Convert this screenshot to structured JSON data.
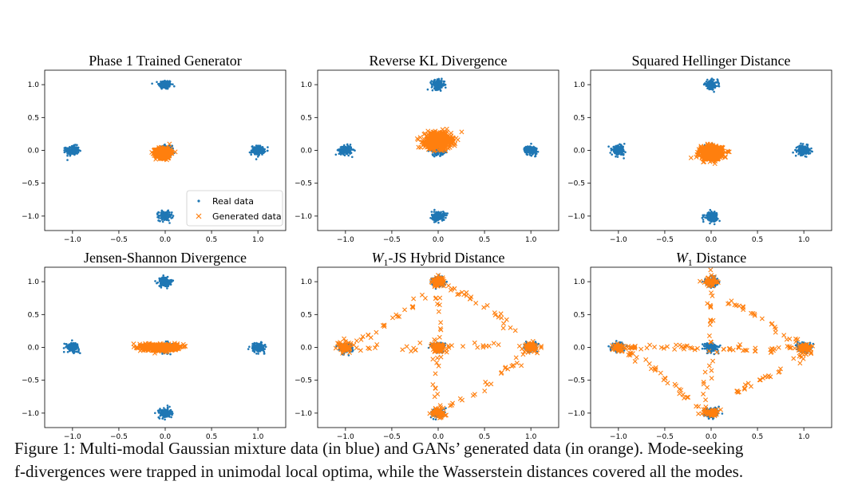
{
  "chart_data": [
    {
      "type": "scatter",
      "title": "Phase 1 Trained Generator",
      "xlim": [
        -1.3,
        1.3
      ],
      "ylim": [
        -1.22,
        1.22
      ],
      "xticks": [
        -1.0,
        -0.5,
        0.0,
        0.5,
        1.0
      ],
      "yticks": [
        -1.0,
        -0.5,
        0.0,
        0.5,
        1.0
      ],
      "legend": {
        "placement": "bottom-right",
        "entries": [
          "Real data",
          "Generated data"
        ]
      },
      "series": [
        {
          "name": "Real data",
          "marker": "dot",
          "color": "#1f77b4",
          "clusters": [
            [
              0,
              1
            ],
            [
              -1,
              0
            ],
            [
              0,
              0
            ],
            [
              1,
              0
            ],
            [
              0,
              -1
            ]
          ],
          "spread": 0.035,
          "points_per_cluster": 160
        },
        {
          "name": "Generated data",
          "marker": "x",
          "color": "#ff7f0e",
          "clusters": [
            [
              -0.02,
              -0.04
            ]
          ],
          "spread_xy": [
            0.04,
            0.04
          ],
          "points_per_cluster": 450
        }
      ]
    },
    {
      "type": "scatter",
      "title": "Reverse KL Divergence",
      "xlim": [
        -1.3,
        1.3
      ],
      "ylim": [
        -1.22,
        1.22
      ],
      "xticks": [
        -1.0,
        -0.5,
        0.0,
        0.5,
        1.0
      ],
      "yticks": [
        -1.0,
        -0.5,
        0.0,
        0.5,
        1.0
      ],
      "series": [
        {
          "name": "Real data",
          "marker": "dot",
          "color": "#1f77b4",
          "clusters": [
            [
              0,
              1
            ],
            [
              -1,
              0
            ],
            [
              0,
              0
            ],
            [
              1,
              0
            ],
            [
              0,
              -1
            ]
          ],
          "spread": 0.035,
          "points_per_cluster": 160
        },
        {
          "name": "Generated data",
          "marker": "x",
          "color": "#ff7f0e",
          "clusters": [
            [
              0.0,
              0.15
            ]
          ],
          "spread_xy": [
            0.07,
            0.06
          ],
          "points_per_cluster": 600
        }
      ]
    },
    {
      "type": "scatter",
      "title": "Squared Hellinger Distance",
      "xlim": [
        -1.3,
        1.3
      ],
      "ylim": [
        -1.22,
        1.22
      ],
      "xticks": [
        -1.0,
        -0.5,
        0.0,
        0.5,
        1.0
      ],
      "yticks": [
        -1.0,
        -0.5,
        0.0,
        0.5,
        1.0
      ],
      "series": [
        {
          "name": "Real data",
          "marker": "dot",
          "color": "#1f77b4",
          "clusters": [
            [
              0,
              1
            ],
            [
              -1,
              0
            ],
            [
              0,
              0
            ],
            [
              1,
              0
            ],
            [
              0,
              -1
            ]
          ],
          "spread": 0.035,
          "points_per_cluster": 160
        },
        {
          "name": "Generated data",
          "marker": "x",
          "color": "#ff7f0e",
          "clusters": [
            [
              0.0,
              -0.04
            ]
          ],
          "spread_xy": [
            0.06,
            0.05
          ],
          "points_per_cluster": 500
        }
      ]
    },
    {
      "type": "scatter",
      "title": "Jensen-Shannon Divergence",
      "xlim": [
        -1.3,
        1.3
      ],
      "ylim": [
        -1.22,
        1.22
      ],
      "xticks": [
        -1.0,
        -0.5,
        0.0,
        0.5,
        1.0
      ],
      "yticks": [
        -1.0,
        -0.5,
        0.0,
        0.5,
        1.0
      ],
      "series": [
        {
          "name": "Real data",
          "marker": "dot",
          "color": "#1f77b4",
          "clusters": [
            [
              0,
              1
            ],
            [
              -1,
              0
            ],
            [
              0,
              0
            ],
            [
              1,
              0
            ],
            [
              0,
              -1
            ]
          ],
          "spread": 0.035,
          "points_per_cluster": 160
        },
        {
          "name": "Generated data",
          "marker": "x",
          "color": "#ff7f0e",
          "clusters": [
            [
              -0.05,
              0.0
            ]
          ],
          "spread_xy": [
            0.09,
            0.025
          ],
          "points_per_cluster": 500
        }
      ]
    },
    {
      "type": "scatter",
      "title": "W1-JS Hybrid Distance",
      "title_parts": [
        "W",
        "1",
        "-JS Hybrid Distance"
      ],
      "xlim": [
        -1.3,
        1.3
      ],
      "ylim": [
        -1.22,
        1.22
      ],
      "xticks": [
        -1.0,
        -0.5,
        0.0,
        0.5,
        1.0
      ],
      "yticks": [
        -1.0,
        -0.5,
        0.0,
        0.5,
        1.0
      ],
      "series": [
        {
          "name": "Real data",
          "marker": "dot",
          "color": "#1f77b4",
          "clusters": [
            [
              0,
              1
            ],
            [
              -1,
              0
            ],
            [
              0,
              0
            ],
            [
              1,
              0
            ],
            [
              0,
              -1
            ]
          ],
          "spread": 0.035,
          "points_per_cluster": 160
        },
        {
          "name": "Generated data",
          "marker": "x",
          "color": "#ff7f0e",
          "clusters": [
            [
              0,
              1
            ],
            [
              -1,
              0
            ],
            [
              1,
              0
            ],
            [
              0,
              -1
            ],
            [
              0,
              0
            ]
          ],
          "spread_xy": [
            0.035,
            0.035
          ],
          "points_per_cluster": 60,
          "paths": [
            [
              [
                -1,
                0
              ],
              [
                -0.6,
                0.3
              ],
              [
                -0.3,
                0.6
              ],
              [
                0,
                1
              ]
            ],
            [
              [
                0,
                1
              ],
              [
                0.3,
                0.8
              ],
              [
                0.6,
                0.55
              ],
              [
                1,
                0
              ]
            ],
            [
              [
                -1,
                0
              ],
              [
                -0.5,
                0.0
              ],
              [
                0,
                0
              ],
              [
                0.5,
                0.03
              ],
              [
                1,
                0
              ]
            ],
            [
              [
                0,
                1
              ],
              [
                0,
                0.5
              ],
              [
                0,
                0
              ],
              [
                0,
                -0.5
              ],
              [
                0,
                -1
              ]
            ],
            [
              [
                1,
                0
              ],
              [
                0.75,
                -0.3
              ],
              [
                0.45,
                -0.65
              ],
              [
                0,
                -1
              ]
            ]
          ],
          "points_per_path": 28
        }
      ]
    },
    {
      "type": "scatter",
      "title": "W1 Distance",
      "title_parts": [
        "W",
        "1",
        " Distance"
      ],
      "xlim": [
        -1.3,
        1.3
      ],
      "ylim": [
        -1.22,
        1.22
      ],
      "xticks": [
        -1.0,
        -0.5,
        0.0,
        0.5,
        1.0
      ],
      "yticks": [
        -1.0,
        -0.5,
        0.0,
        0.5,
        1.0
      ],
      "series": [
        {
          "name": "Real data",
          "marker": "dot",
          "color": "#1f77b4",
          "clusters": [
            [
              0,
              1
            ],
            [
              -1,
              0
            ],
            [
              0,
              0
            ],
            [
              1,
              0
            ],
            [
              0,
              -1
            ]
          ],
          "spread": 0.035,
          "points_per_cluster": 160
        },
        {
          "name": "Generated data",
          "marker": "x",
          "color": "#ff7f0e",
          "clusters": [
            [
              -1,
              0
            ],
            [
              1,
              0
            ],
            [
              0,
              -1
            ],
            [
              0,
              1
            ]
          ],
          "spread_xy": [
            0.04,
            0.03
          ],
          "points_per_cluster": 40,
          "paths": [
            [
              [
                -1,
                0
              ],
              [
                -0.5,
                0.01
              ],
              [
                0,
                0
              ]
            ],
            [
              [
                0,
                1.2
              ],
              [
                0,
                0.6
              ],
              [
                0,
                0
              ],
              [
                -0.05,
                -0.6
              ],
              [
                -0.1,
                -1.1
              ]
            ],
            [
              [
                0,
                0.8
              ],
              [
                0.4,
                0.55
              ],
              [
                0.8,
                0.2
              ],
              [
                1.1,
                -0.05
              ]
            ],
            [
              [
                -0.9,
                -0.1
              ],
              [
                -0.5,
                -0.4
              ],
              [
                -0.15,
                -0.95
              ]
            ],
            [
              [
                0.1,
                -0.8
              ],
              [
                0.5,
                -0.5
              ],
              [
                0.9,
                -0.2
              ],
              [
                1.15,
                0.0
              ]
            ],
            [
              [
                0,
                0
              ],
              [
                0.5,
                -0.05
              ],
              [
                1,
                0
              ]
            ]
          ],
          "points_per_path": 30
        }
      ]
    }
  ],
  "caption": {
    "line1": "Figure 1: Multi-modal Gaussian mixture data (in blue) and GANs’ generated data (in orange). Mode-seeking",
    "line2": "f-divergences were trapped in unimodal local optima, while the Wasserstein distances covered all the modes."
  }
}
